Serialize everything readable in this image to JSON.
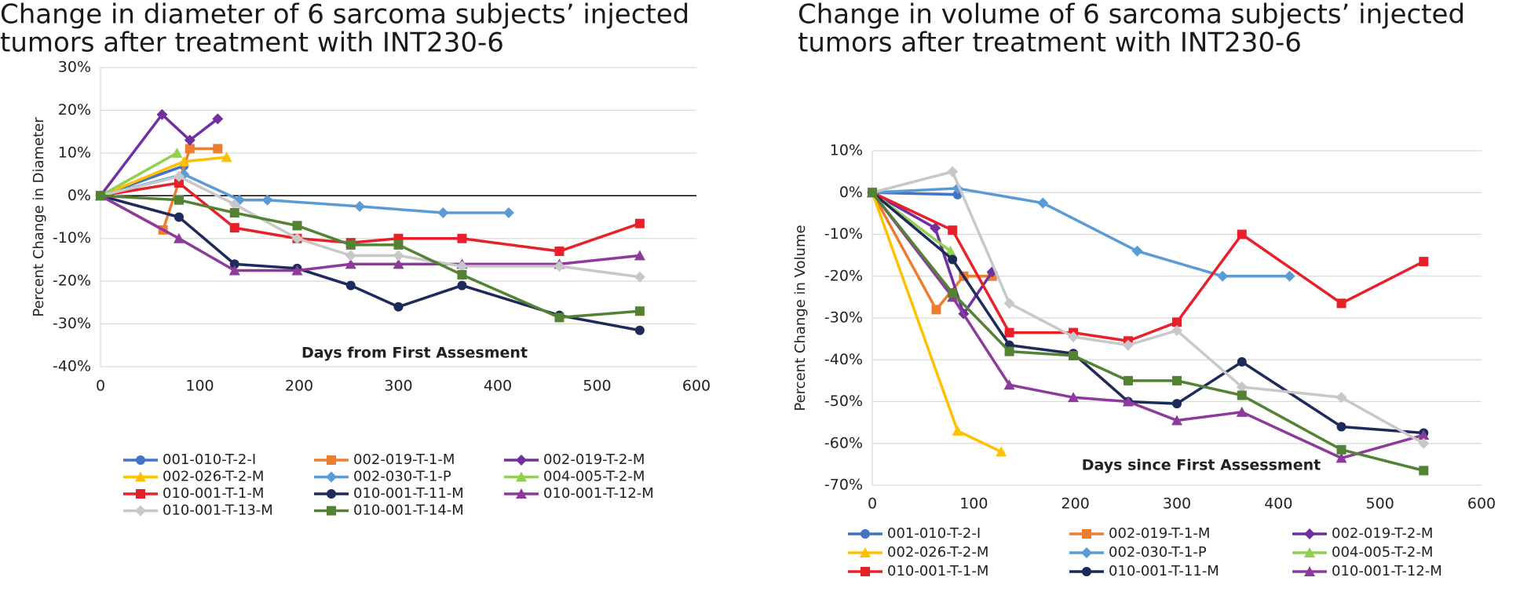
{
  "chart_data": [
    {
      "type": "line",
      "title": [
        "Change in diameter of 6 sarcoma subjects’ injected",
        "tumors after treatment with INT230-6"
      ],
      "x_label": "Days from First Assesment",
      "y_label": "Percent Change in Diameter",
      "xlim": [
        0,
        600
      ],
      "xticks": [
        0,
        100,
        200,
        300,
        400,
        500,
        600
      ],
      "ylim": [
        -40,
        30
      ],
      "yticks": [
        {
          "value": -40,
          "label": "-40%"
        },
        {
          "value": -30,
          "label": "-30%"
        },
        {
          "value": -20,
          "label": "-20%"
        },
        {
          "value": -10,
          "label": "-10%"
        },
        {
          "value": 0,
          "label": "0%"
        },
        {
          "value": 10,
          "label": "10%"
        },
        {
          "value": 20,
          "label": "20%"
        },
        {
          "value": 30,
          "label": "30%"
        }
      ],
      "grid": true,
      "zero_line": true,
      "series": [
        {
          "name": "001-010-T-2-I",
          "color": "#4472c4",
          "marker": "circle",
          "x": [
            0,
            84
          ],
          "values": [
            0,
            7
          ]
        },
        {
          "name": "002-019-T-1-M",
          "color": "#ed7d31",
          "marker": "square",
          "x": [
            0,
            63,
            90,
            118
          ],
          "values": [
            0,
            -8,
            11,
            11
          ]
        },
        {
          "name": "002-019-T-2-M",
          "color": "#7030a0",
          "marker": "diamond",
          "x": [
            0,
            62,
            90,
            118
          ],
          "values": [
            0,
            19,
            13,
            18
          ]
        },
        {
          "name": "002-026-T-2-M",
          "color": "#ffc000",
          "marker": "triangle",
          "x": [
            0,
            84,
            127
          ],
          "values": [
            0,
            8,
            9
          ]
        },
        {
          "name": "002-030-T-1-P",
          "color": "#5b9bd5",
          "marker": "diamond",
          "x": [
            0,
            84,
            140,
            168,
            261,
            345,
            411
          ],
          "values": [
            0,
            5,
            -1,
            -1,
            -2.5,
            -4,
            -4
          ]
        },
        {
          "name": "004-005-T-2-M",
          "color": "#92d050",
          "marker": "triangle",
          "x": [
            0,
            77
          ],
          "values": [
            0,
            10
          ]
        },
        {
          "name": "010-001-T-1-M",
          "color": "#e8202a",
          "marker": "square",
          "x": [
            0,
            79,
            135,
            198,
            252,
            300,
            364,
            462,
            543
          ],
          "values": [
            0,
            3,
            -7.5,
            -10,
            -11,
            -10,
            -10,
            -13,
            -6.5
          ]
        },
        {
          "name": "010-001-T-11-M",
          "color": "#1f2a5c",
          "marker": "circle",
          "x": [
            0,
            79,
            135,
            198,
            252,
            300,
            364,
            462,
            543
          ],
          "values": [
            0,
            -5,
            -16,
            -17,
            -21,
            -26,
            -21,
            -28,
            -31.5
          ]
        },
        {
          "name": "010-001-T-12-M",
          "color": "#8e3a9d",
          "marker": "triangle",
          "x": [
            0,
            79,
            135,
            198,
            252,
            300,
            364,
            462,
            543
          ],
          "values": [
            0,
            -10,
            -17.5,
            -17.5,
            -16,
            -16,
            -16,
            -16,
            -14
          ]
        },
        {
          "name": "010-001-T-13-M",
          "color": "#c8c8c8",
          "marker": "diamond",
          "x": [
            0,
            79,
            135,
            198,
            252,
            300,
            364,
            462,
            543
          ],
          "values": [
            0,
            4.5,
            -2,
            -10,
            -14,
            -14,
            -16.5,
            -16.5,
            -19
          ]
        },
        {
          "name": "010-001-T-14-M",
          "color": "#548235",
          "marker": "square",
          "x": [
            0,
            79,
            135,
            198,
            252,
            300,
            364,
            462,
            543
          ],
          "values": [
            0,
            -1,
            -4,
            -7,
            -11.5,
            -11.5,
            -18.5,
            -28.5,
            -27
          ]
        }
      ]
    },
    {
      "type": "line",
      "title": [
        "Change in volume of 6 sarcoma subjects’ injected",
        "tumors after treatment with INT230-6"
      ],
      "x_label": "Days since First Assessment",
      "y_label": "Percent Change in Volume",
      "xlim": [
        0,
        600
      ],
      "xticks": [
        0,
        100,
        200,
        300,
        400,
        500,
        600
      ],
      "ylim": [
        -70,
        10
      ],
      "yticks": [
        {
          "value": -70,
          "label": "-70%"
        },
        {
          "value": -60,
          "label": "-60%"
        },
        {
          "value": -50,
          "label": "-50%"
        },
        {
          "value": -40,
          "label": "-40%"
        },
        {
          "value": -30,
          "label": "-30%"
        },
        {
          "value": -20,
          "label": "-20%"
        },
        {
          "value": -10,
          "label": "-10%"
        },
        {
          "value": 0,
          "label": "0%"
        },
        {
          "value": 10,
          "label": "10%"
        }
      ],
      "grid": true,
      "zero_line": false,
      "series": [
        {
          "name": "001-010-T-2-I",
          "color": "#4472c4",
          "marker": "circle",
          "x": [
            0,
            84
          ],
          "values": [
            0,
            -0.5
          ]
        },
        {
          "name": "002-019-T-1-M",
          "color": "#ed7d31",
          "marker": "square",
          "x": [
            0,
            63,
            90,
            118
          ],
          "values": [
            0,
            -28,
            -20,
            -20
          ]
        },
        {
          "name": "002-019-T-2-M",
          "color": "#7030a0",
          "marker": "diamond",
          "x": [
            0,
            62,
            90,
            118
          ],
          "values": [
            0,
            -8.5,
            -29,
            -19
          ]
        },
        {
          "name": "002-026-T-2-M",
          "color": "#ffc000",
          "marker": "triangle",
          "x": [
            0,
            84,
            127
          ],
          "values": [
            0,
            -57,
            -62
          ]
        },
        {
          "name": "002-030-T-1-P",
          "color": "#5b9bd5",
          "marker": "diamond",
          "x": [
            0,
            84,
            168,
            261,
            345,
            411
          ],
          "values": [
            0,
            1,
            -2.5,
            -14,
            -20,
            -20
          ]
        },
        {
          "name": "004-005-T-2-M",
          "color": "#92d050",
          "marker": "triangle",
          "x": [
            0,
            77
          ],
          "values": [
            0,
            -14
          ]
        },
        {
          "name": "010-001-T-1-M",
          "color": "#e8202a",
          "marker": "square",
          "x": [
            0,
            79,
            135,
            198,
            252,
            300,
            364,
            462,
            543
          ],
          "values": [
            0,
            -9,
            -33.5,
            -33.5,
            -35.5,
            -31,
            -10,
            -26.5,
            -16.5
          ]
        },
        {
          "name": "010-001-T-11-M",
          "color": "#1f2a5c",
          "marker": "circle",
          "x": [
            0,
            79,
            135,
            198,
            252,
            300,
            364,
            462,
            543
          ],
          "values": [
            0,
            -16,
            -36.5,
            -38.5,
            -50,
            -50.5,
            -40.5,
            -56,
            -57.5
          ]
        },
        {
          "name": "010-001-T-12-M",
          "color": "#8e3a9d",
          "marker": "triangle",
          "x": [
            0,
            79,
            135,
            198,
            252,
            300,
            364,
            462,
            543
          ],
          "values": [
            0,
            -25,
            -46,
            -49,
            -50,
            -54.5,
            -52.5,
            -63.5,
            -58
          ]
        },
        {
          "color": "#c8c8c8",
          "marker": "diamond",
          "x": [
            0,
            79,
            135,
            198,
            252,
            300,
            364,
            462,
            543
          ],
          "values": [
            0,
            5,
            -26.5,
            -34.5,
            -36.5,
            -33,
            -46.5,
            -49,
            -60
          ]
        },
        {
          "color": "#548235",
          "marker": "square",
          "x": [
            0,
            79,
            135,
            198,
            252,
            300,
            364,
            462,
            543
          ],
          "values": [
            0,
            -24,
            -38,
            -39,
            -45,
            -45,
            -48.5,
            -61.5,
            -66.5
          ]
        }
      ]
    }
  ]
}
